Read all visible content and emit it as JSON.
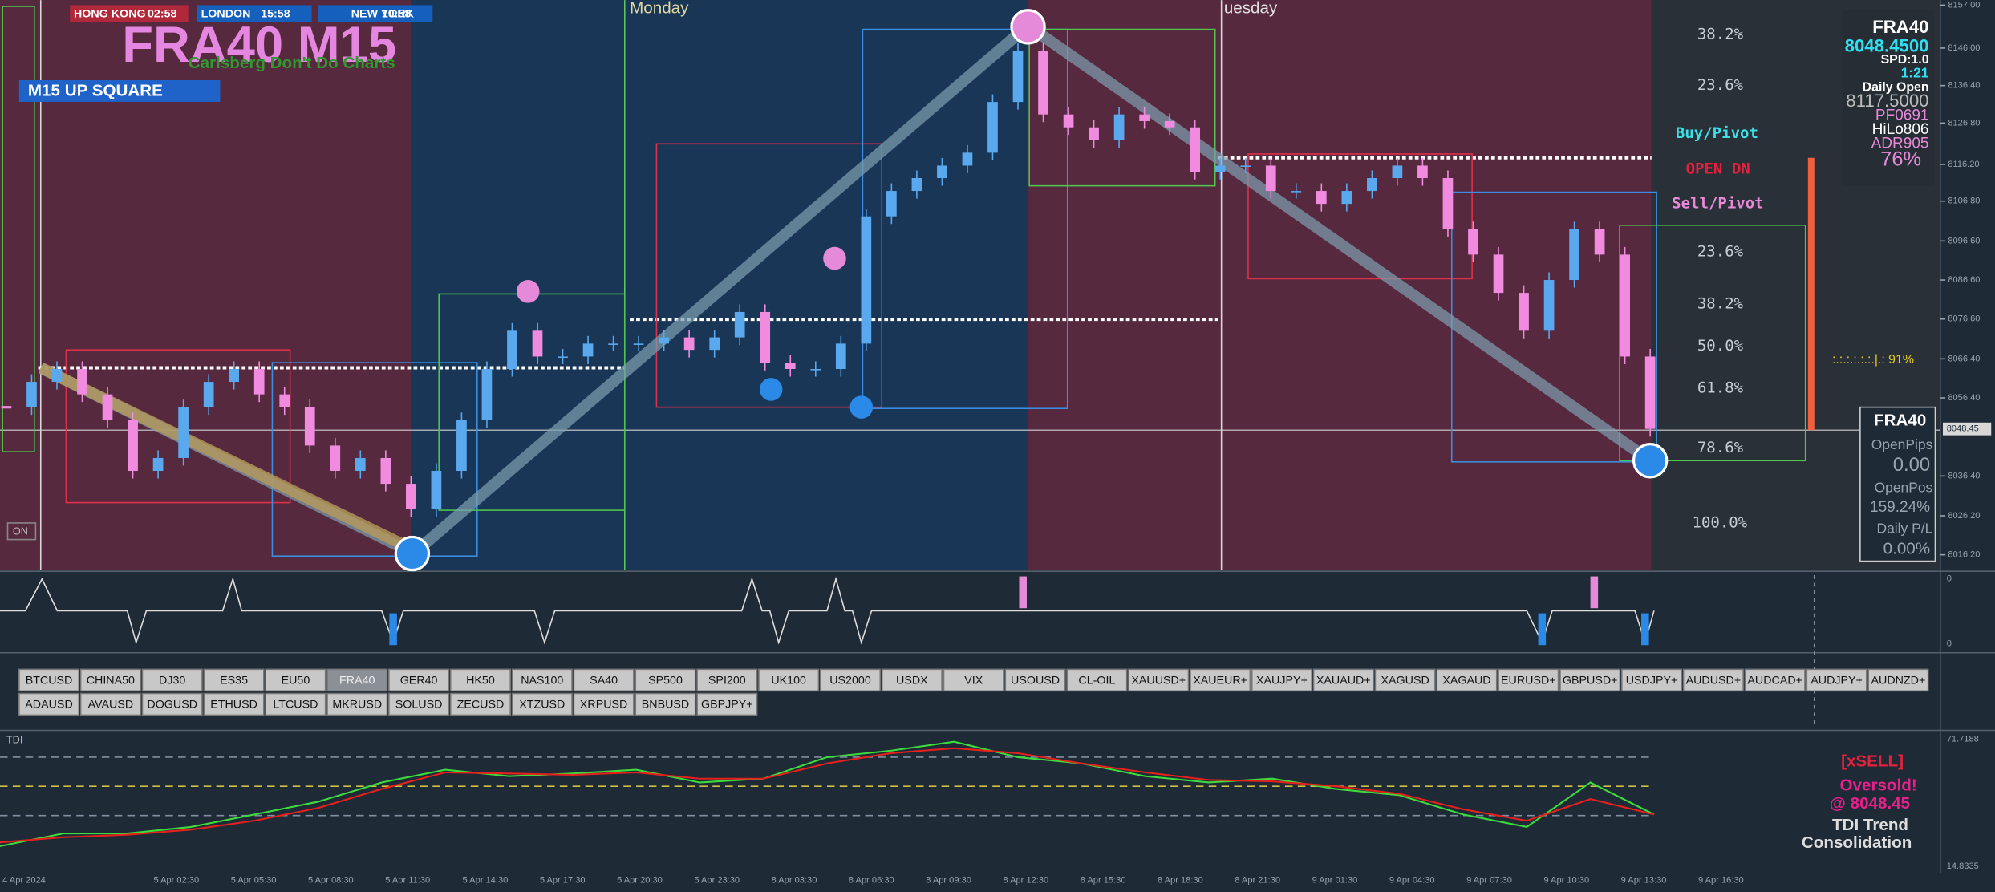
{
  "header": {
    "sessions": [
      {
        "name": "HONG KONG",
        "time": "02:58"
      },
      {
        "name": "LONDON",
        "time": "15:58"
      },
      {
        "name": "NEW YORK",
        "time": "10:58"
      }
    ],
    "title": "FRA40 M15",
    "subtitle": "Carlsberg Don't Do Charts",
    "badge": "M15  UP SQUARE",
    "on_label": "ON",
    "day_labels": [
      "Monday",
      "uesday"
    ]
  },
  "price_panel": {
    "ylim": [
      8012.3,
      8158.3
    ],
    "yticks": [
      {
        "value": 8157,
        "label": "8157.00"
      },
      {
        "value": 8146,
        "label": "8146.00"
      },
      {
        "value": 8136.4,
        "label": "8136.40"
      },
      {
        "value": 8126.8,
        "label": "8126.80"
      },
      {
        "value": 8116.2,
        "label": "8116.20"
      },
      {
        "value": 8106.8,
        "label": "8106.80"
      },
      {
        "value": 8096.6,
        "label": "8096.60"
      },
      {
        "value": 8086.6,
        "label": "8086.60"
      },
      {
        "value": 8076.6,
        "label": "8076.60"
      },
      {
        "value": 8066.4,
        "label": "8066.40"
      },
      {
        "value": 8056.4,
        "label": "8056.40"
      },
      {
        "value": 8036.4,
        "label": "8036.40"
      },
      {
        "value": 8026.2,
        "label": "8026.20"
      },
      {
        "value": 8016.2,
        "label": "8016.20"
      }
    ],
    "current_price": 8048.45,
    "closes": [
      8054.0,
      8060.5,
      8063.8,
      8057.3,
      8050.7,
      8037.7,
      8041.0,
      8054.0,
      8060.5,
      8063.8,
      8057.3,
      8054.0,
      8044.2,
      8037.7,
      8041.0,
      8034.4,
      8027.9,
      8037.7,
      8050.7,
      8063.8,
      8073.6,
      8067.0,
      8067.0,
      8070.3,
      8070.3,
      8070.3,
      8071.9,
      8068.7,
      8071.9,
      8078.4,
      8065.4,
      8063.8,
      8063.8,
      8070.3,
      8102.9,
      8109.4,
      8112.7,
      8115.9,
      8119.2,
      8132.2,
      8145.3,
      8129.0,
      8125.7,
      8122.4,
      8129.0,
      8127.3,
      8125.7,
      8114.3,
      8115.9,
      8115.9,
      8109.4,
      8109.4,
      8106.1,
      8109.4,
      8112.7,
      8115.9,
      8112.7,
      8099.6,
      8093.1,
      8083.3,
      8073.6,
      8086.6,
      8099.6,
      8093.1,
      8067.0,
      8048.45
    ],
    "up_color": "#5aa9ef",
    "down_color": "#f08be0",
    "fib_labels": [
      "38.2%",
      "23.6%",
      "Buy/Pivot",
      "OPEN DN",
      "Sell/Pivot",
      "23.6%",
      "38.2%",
      "50.0%",
      "61.8%",
      "78.6%",
      "100.0%"
    ],
    "strength_label": ":.:.:.:.:.:.|.: 91%"
  },
  "info_panel": {
    "symbol": "FRA40",
    "price": "8048.4500",
    "spread": "SPD:1.0",
    "ratio": "1:21",
    "daily_open_label": "Daily Open",
    "daily_open": "8117.5000",
    "pf": "PF0691",
    "hilo": "HiLo806",
    "adr": "ADR905",
    "percent": "76%"
  },
  "position_panel": {
    "symbol": "FRA40",
    "open_pips_label": "OpenPips",
    "open_pips": "0.00",
    "open_pos_label": "OpenPos",
    "open_pos": "159.24%",
    "daily_pl_label": "Daily P/L",
    "daily_pl": "0.00%"
  },
  "signal_panel": {
    "labels": [
      "0",
      "0"
    ]
  },
  "symbol_buttons": {
    "row1": [
      "BTCUSD",
      "CHINA50",
      "DJ30",
      "ES35",
      "EU50",
      "FRA40",
      "GER40",
      "HK50",
      "NAS100",
      "SA40",
      "SP500",
      "SPI200",
      "UK100",
      "US2000",
      "USDX",
      "VIX",
      "USOUSD",
      "CL-OIL",
      "XAUUSD+",
      "XAUEUR+",
      "XAUJPY+",
      "XAUAUD+",
      "XAGUSD",
      "XAGAUD",
      "EURUSD+",
      "GBPUSD+",
      "USDJPY+",
      "AUDUSD+",
      "AUDCAD+",
      "AUDJPY+",
      "AUDNZD+"
    ],
    "row2": [
      "ADAUSD",
      "AVAUSD",
      "DOGUSD",
      "ETHUSD",
      "LTCUSD",
      "MKRUSD",
      "SOLUSD",
      "ZECUSD",
      "XTZUSD",
      "XRPUSD",
      "BNBUSD",
      "GBPJPY+"
    ],
    "active": "FRA40"
  },
  "tdi_panel": {
    "title": "TDI",
    "ylim": [
      14.8335,
      71.7188
    ],
    "yticks": [
      71.7188,
      14.8335
    ],
    "levels": [
      63.7,
      50.7,
      37.6
    ],
    "series": [
      {
        "color": "#3ddc3d",
        "values": [
          23.9,
          29.6,
          29.6,
          32.5,
          38.1,
          43.8,
          52.4,
          58.1,
          55.2,
          56.4,
          58.1,
          52.4,
          54.1,
          63.7,
          66.6,
          70.6,
          63.7,
          60.9,
          55.2,
          52.4,
          54.1,
          49.5,
          46.7,
          38.1,
          32.5,
          52.4,
          38.1
        ]
      },
      {
        "color": "#e8201c",
        "values": [
          25.6,
          27.9,
          29.0,
          31.3,
          35.3,
          41.0,
          49.5,
          56.9,
          56.4,
          55.8,
          56.9,
          54.1,
          54.1,
          60.9,
          65.5,
          67.7,
          65.5,
          60.9,
          56.9,
          53.5,
          52.9,
          50.7,
          47.3,
          40.4,
          35.3,
          45.0,
          38.1
        ]
      }
    ],
    "signal": "[xSELL]",
    "status": "Oversold!",
    "at_price": "@ 8048.45",
    "trend_label": "TDI Trend",
    "trend": "Consolidation"
  },
  "time_axis": [
    "4 Apr 2024",
    "5 Apr 02:30",
    "5 Apr 05:30",
    "5 Apr 08:30",
    "5 Apr 11:30",
    "5 Apr 14:30",
    "5 Apr 17:30",
    "5 Apr 20:30",
    "5 Apr 23:30",
    "8 Apr 03:30",
    "8 Apr 06:30",
    "8 Apr 09:30",
    "8 Apr 12:30",
    "8 Apr 15:30",
    "8 Apr 18:30",
    "8 Apr 21:30",
    "9 Apr 01:30",
    "9 Apr 04:30",
    "9 Apr 07:30",
    "9 Apr 10:30",
    "9 Apr 13:30",
    "9 Apr 16:30"
  ]
}
